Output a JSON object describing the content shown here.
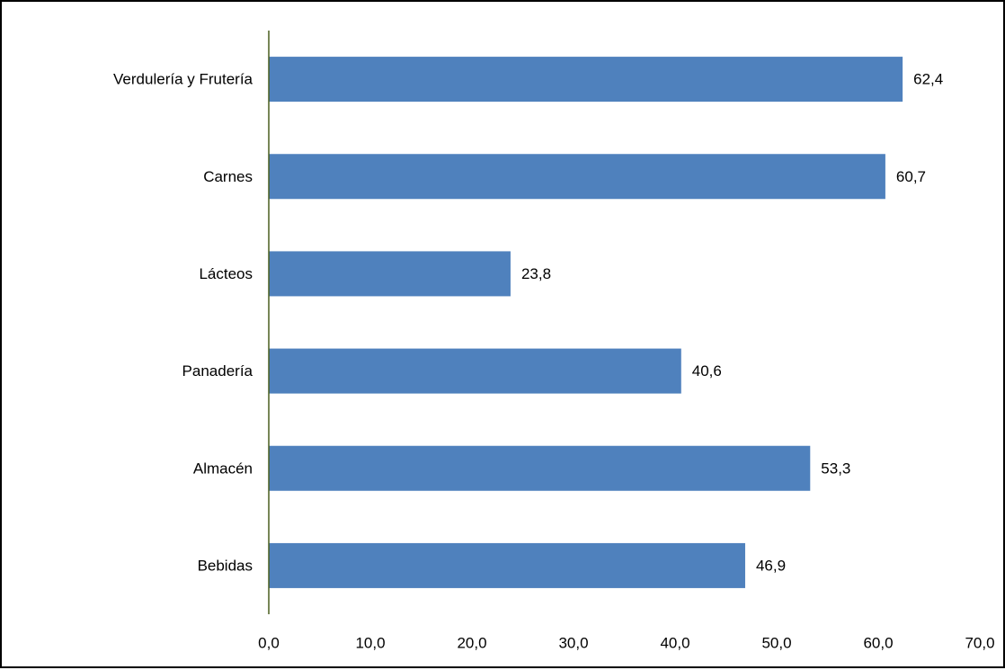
{
  "chart_data": {
    "type": "bar",
    "orientation": "horizontal",
    "categories": [
      "Verdulería y Frutería",
      "Carnes",
      "Lácteos",
      "Panadería",
      "Almacén",
      "Bebidas"
    ],
    "values": [
      62.4,
      60.7,
      23.8,
      40.6,
      53.3,
      46.9
    ],
    "data_labels": [
      "62,4",
      "60,7",
      "23,8",
      "40,6",
      "53,3",
      "46,9"
    ],
    "xlim": [
      0,
      70
    ],
    "x_ticks": [
      0,
      10,
      20,
      30,
      40,
      50,
      60,
      70
    ],
    "x_tick_labels": [
      "0,0",
      "10,0",
      "20,0",
      "30,0",
      "40,0",
      "50,0",
      "60,0",
      "70,0"
    ],
    "grid": false,
    "legend": "none",
    "colors": {
      "bar": "#4f81bd",
      "axis": "#4a5e1f",
      "border": "#000000"
    }
  }
}
